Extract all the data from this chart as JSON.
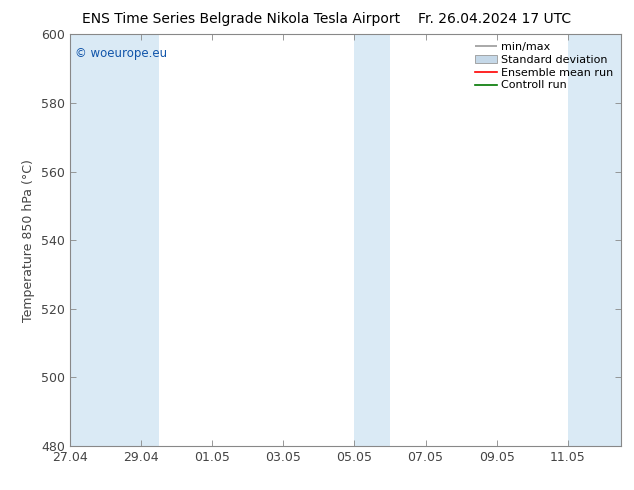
{
  "title_left": "ENS Time Series Belgrade Nikola Tesla Airport",
  "title_right": "Fr. 26.04.2024 17 UTC",
  "ylabel": "Temperature 850 hPa (°C)",
  "ylim": [
    480,
    600
  ],
  "yticks": [
    480,
    500,
    520,
    540,
    560,
    580,
    600
  ],
  "xtick_labels": [
    "27.04",
    "29.04",
    "01.05",
    "03.05",
    "05.05",
    "07.05",
    "09.05",
    "11.05"
  ],
  "xtick_positions": [
    0,
    2,
    4,
    6,
    8,
    10,
    12,
    14
  ],
  "xlim": [
    0,
    15.5
  ],
  "weekend_bands": [
    {
      "start": 0,
      "end": 1.5
    },
    {
      "start": 1.5,
      "end": 2.5
    },
    {
      "start": 8,
      "end": 9
    },
    {
      "start": 14,
      "end": 15.5
    }
  ],
  "band_color": "#daeaf5",
  "background_color": "#ffffff",
  "watermark": "© woeurope.eu",
  "watermark_color": "#1155aa",
  "legend_items": [
    {
      "label": "min/max",
      "color": "#aaaaaa",
      "type": "minmax"
    },
    {
      "label": "Standard deviation",
      "color": "#bbccdd",
      "type": "std"
    },
    {
      "label": "Ensemble mean run",
      "color": "#ff0000",
      "type": "line"
    },
    {
      "label": "Controll run",
      "color": "#007700",
      "type": "line"
    }
  ],
  "title_fontsize": 10,
  "axis_label_fontsize": 9,
  "tick_fontsize": 9,
  "legend_fontsize": 8,
  "border_color": "#888888",
  "tick_color": "#444444"
}
